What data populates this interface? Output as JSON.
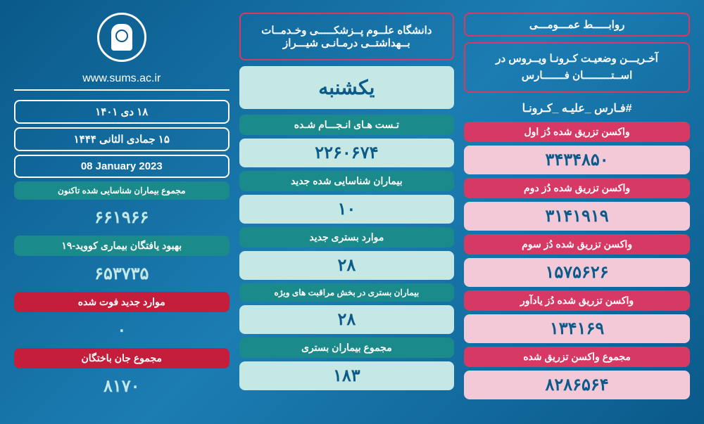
{
  "header": {
    "public_relations": "روابـــــط عمـــومـــی",
    "university": "دانشگاه علــوم پــزشکـــــی وخـدمــات بــهداشتــی درمـانـی شیـــراز",
    "status_title": "آخـریـــن وضعیـت کـرونـا ویــروس در اســتـــــــــان فـــــــارس",
    "hashtag": "#فـارس _علیـه _کـرونـا"
  },
  "vaccines": {
    "dose1_label": "واکسن تزریق شده دُز اول",
    "dose1_value": "۳۴۳۴۸۵۰",
    "dose2_label": "واکسن تزریق شده دُز دوم",
    "dose2_value": "۳۱۴۱۹۱۹",
    "dose3_label": "واکسن تزریق شده دُز سوم",
    "dose3_value": "۱۵۷۵۶۲۶",
    "booster_label": "واکسن تزریق شده دُز یادآور",
    "booster_value": "۱۳۴۱۶۹",
    "total_label": "مجموع واکسن تزریق شده",
    "total_value": "۸۲۸۶۵۶۴"
  },
  "stats": {
    "day": "یکشنبه",
    "tests_label": "تـست هـای انـجـــام شـده",
    "tests_value": "۲۲۶۰۶۷۴",
    "new_cases_label": "بیماران شناسایی شده جدید",
    "new_cases_value": "۱۰",
    "new_hosp_label": "موارد بستری جدید",
    "new_hosp_value": "۲۸",
    "icu_label": "بیماران بستری در بخش مراقبت های ویژه",
    "icu_value": "۲۸",
    "total_hosp_label": "مجموع بیماران بستری",
    "total_hosp_value": "۱۸۳"
  },
  "dates": {
    "persian": "۱۸ دی ۱۴۰۱",
    "hijri": "۱۵ جمادی الثانی ۱۴۴۴",
    "gregorian": "08 January 2023"
  },
  "totals": {
    "total_cases_label": "مجموع بیماران شناسایی شده تاکنون",
    "total_cases_value": "۶۶۱۹۶۶",
    "recovered_label": "بهبود یافتگان بیماری کووید-۱۹",
    "recovered_value": "۶۵۳۷۳۵",
    "new_deaths_label": "موارد جدید فوت شده",
    "new_deaths_value": "۰",
    "total_deaths_label": "مجموع جان باختگان",
    "total_deaths_value": "۸۱۷۰"
  },
  "logo": {
    "website": "www.sums.ac.ir",
    "ring_text": "دانشگاه علوم پزشکی و خدمات بهداشتی درمانی شیراز"
  },
  "colors": {
    "bg_start": "#0a5a8a",
    "bg_mid": "#1c7db3",
    "pink": "#d63963",
    "pink_light": "#f4c9d7",
    "teal": "#1a8a8a",
    "teal_light": "#c5e8e4",
    "red": "#c41e3a",
    "white": "#ffffff"
  }
}
